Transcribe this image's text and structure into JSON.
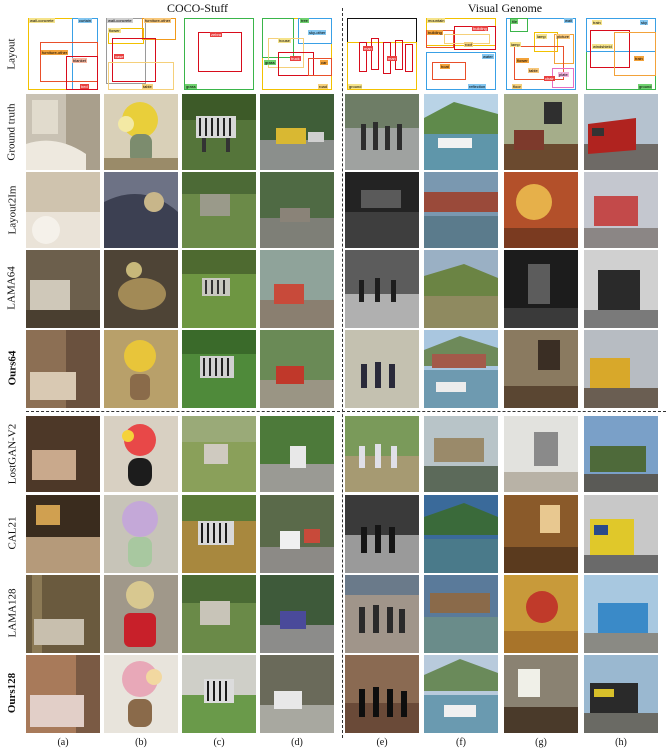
{
  "headers": {
    "left": "COCO-Stuff",
    "right": "Visual Genome"
  },
  "rows": [
    {
      "label": "Layout",
      "bold": false
    },
    {
      "label": "Ground truth",
      "bold": false
    },
    {
      "label": "Layout2Im",
      "bold": false
    },
    {
      "label": "LAMA64",
      "bold": false
    },
    {
      "label": "Ours64",
      "bold": true
    },
    {
      "label": "LostGAN-V2",
      "bold": false
    },
    {
      "label": "CAL21",
      "bold": false
    },
    {
      "label": "LAMA128",
      "bold": false
    },
    {
      "label": "Ours128",
      "bold": true
    }
  ],
  "columns": [
    "(a)",
    "(b)",
    "(c)",
    "(d)",
    "(e)",
    "(f)",
    "(g)",
    "(h)"
  ],
  "layout_tags": {
    "a": [
      "wall-concrete",
      "curtain",
      "furniture-other",
      "blanket",
      "bed"
    ],
    "b": [
      "wall-concrete",
      "furniture-other",
      "flower",
      "vase",
      "table"
    ],
    "c": [
      "zebra",
      "grass"
    ],
    "d": [
      "tree",
      "sky-other",
      "house",
      "truck",
      "car",
      "grass",
      "road"
    ],
    "e": [
      "man",
      "man",
      "ground"
    ],
    "f": [
      "mountain",
      "building",
      "building",
      "roof",
      "boat",
      "water",
      "reflection"
    ],
    "g": [
      "tile",
      "wall",
      "lamp",
      "picture",
      "lamp",
      "flower",
      "table",
      "chair",
      "floor",
      "plate"
    ],
    "h": [
      "train",
      "sky",
      "windshield",
      "train",
      "ground"
    ]
  }
}
